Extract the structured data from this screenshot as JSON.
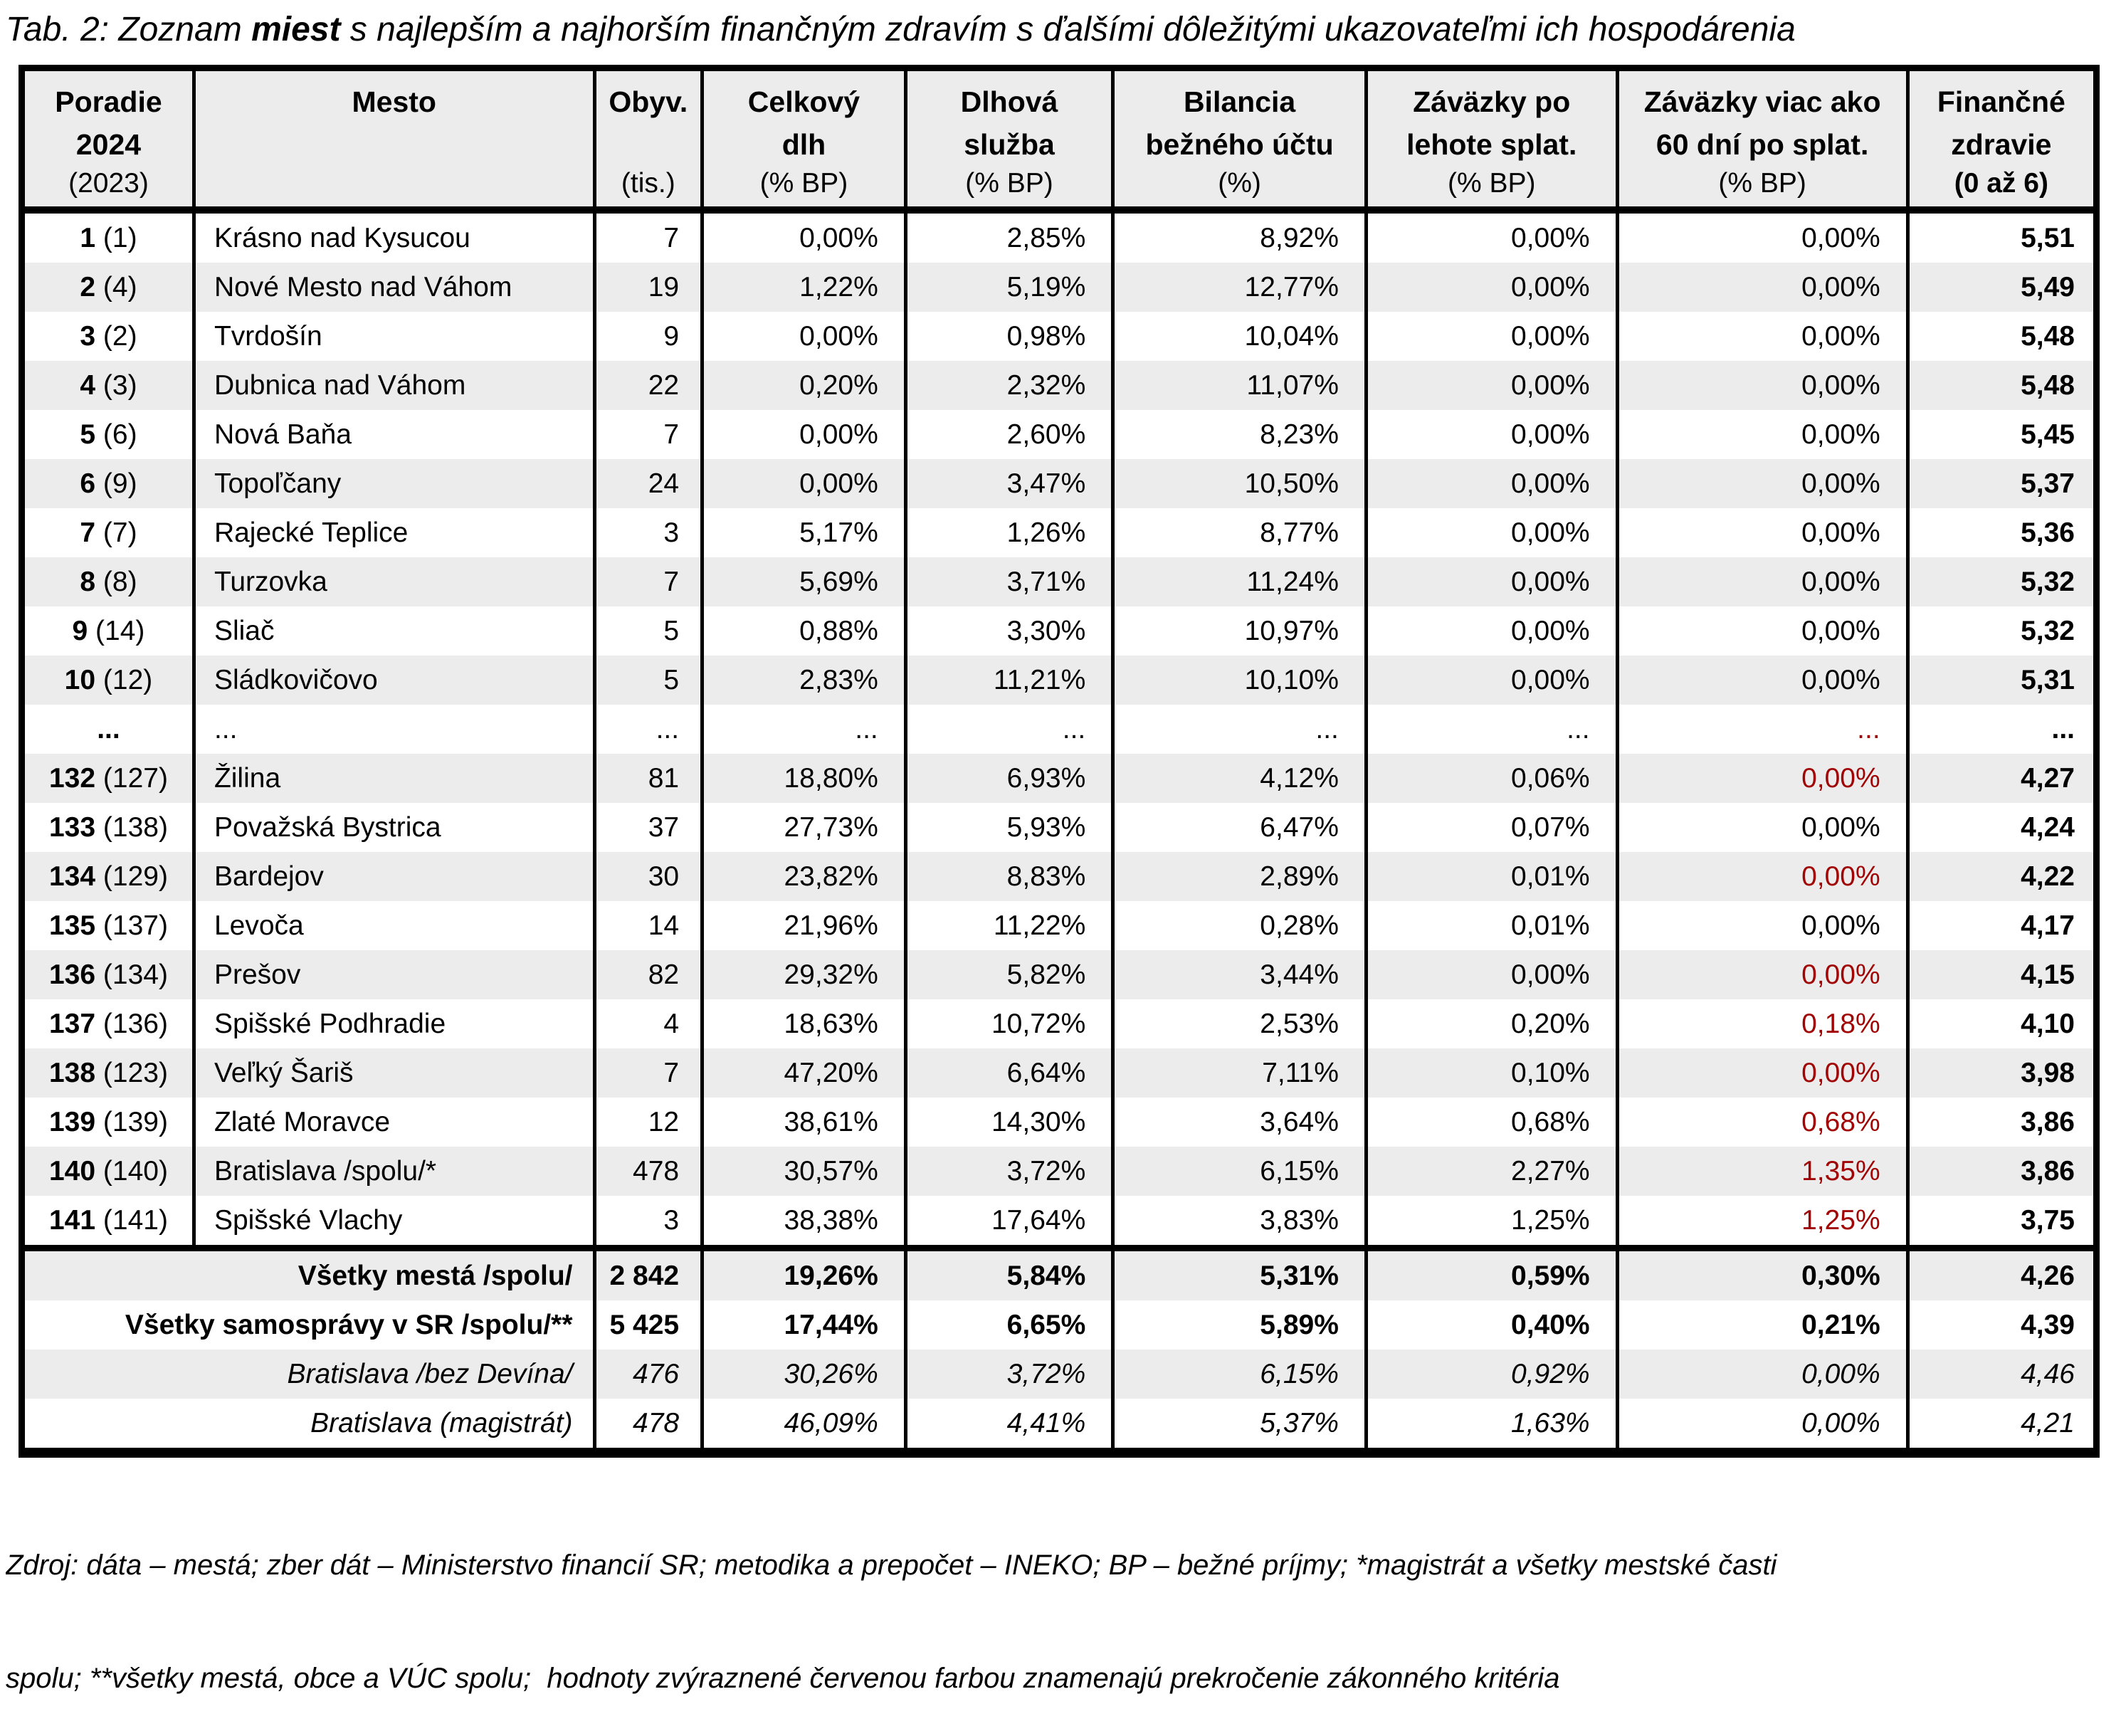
{
  "title": {
    "prefix": "Tab. 2: Zoznam ",
    "bold_word": "miest",
    "suffix": " s najlepším a najhorším finančným zdravím s ďalšími dôležitými ukazovateľmi ich hospodárenia"
  },
  "colors": {
    "highlight_red": "#A00404",
    "row_alt_gray": "#ECECEC",
    "border": "#000000"
  },
  "table": {
    "header": {
      "columns": [
        {
          "lines": [
            "Poradie",
            "2024"
          ],
          "unit": "(2023)",
          "unit_bold": false
        },
        {
          "lines": [
            "Mesto"
          ],
          "unit": "",
          "unit_bold": false
        },
        {
          "lines": [
            "Obyv."
          ],
          "unit": "(tis.)",
          "unit_bold": false
        },
        {
          "lines": [
            "Celkový",
            "dlh"
          ],
          "unit": "(% BP)",
          "unit_bold": false
        },
        {
          "lines": [
            "Dlhová",
            "služba"
          ],
          "unit": "(% BP)",
          "unit_bold": false
        },
        {
          "lines": [
            "Bilancia",
            "bežného účtu"
          ],
          "unit": "(%)",
          "unit_bold": false
        },
        {
          "lines": [
            "Záväzky po",
            "lehote splat."
          ],
          "unit": "(% BP)",
          "unit_bold": false
        },
        {
          "lines": [
            "Záväzky viac ako",
            "60 dní po splat."
          ],
          "unit": "(% BP)",
          "unit_bold": false
        },
        {
          "lines": [
            "Finančné",
            "zdravie"
          ],
          "unit": "(0 až 6)",
          "unit_bold": true
        }
      ]
    },
    "rows": [
      {
        "rank": "1",
        "prev": "(1)",
        "city": "Krásno nad Kysucou",
        "values": [
          "7",
          "0,00%",
          "2,85%",
          "8,92%",
          "0,00%",
          "0,00%",
          "5,51"
        ],
        "zav60_red": false
      },
      {
        "rank": "2",
        "prev": "(4)",
        "city": "Nové Mesto nad Váhom",
        "values": [
          "19",
          "1,22%",
          "5,19%",
          "12,77%",
          "0,00%",
          "0,00%",
          "5,49"
        ],
        "zav60_red": false
      },
      {
        "rank": "3",
        "prev": "(2)",
        "city": "Tvrdošín",
        "values": [
          "9",
          "0,00%",
          "0,98%",
          "10,04%",
          "0,00%",
          "0,00%",
          "5,48"
        ],
        "zav60_red": false
      },
      {
        "rank": "4",
        "prev": "(3)",
        "city": "Dubnica nad Váhom",
        "values": [
          "22",
          "0,20%",
          "2,32%",
          "11,07%",
          "0,00%",
          "0,00%",
          "5,48"
        ],
        "zav60_red": false
      },
      {
        "rank": "5",
        "prev": "(6)",
        "city": "Nová Baňa",
        "values": [
          "7",
          "0,00%",
          "2,60%",
          "8,23%",
          "0,00%",
          "0,00%",
          "5,45"
        ],
        "zav60_red": false
      },
      {
        "rank": "6",
        "prev": "(9)",
        "city": "Topoľčany",
        "values": [
          "24",
          "0,00%",
          "3,47%",
          "10,50%",
          "0,00%",
          "0,00%",
          "5,37"
        ],
        "zav60_red": false
      },
      {
        "rank": "7",
        "prev": "(7)",
        "city": "Rajecké Teplice",
        "values": [
          "3",
          "5,17%",
          "1,26%",
          "8,77%",
          "0,00%",
          "0,00%",
          "5,36"
        ],
        "zav60_red": false
      },
      {
        "rank": "8",
        "prev": "(8)",
        "city": "Turzovka",
        "values": [
          "7",
          "5,69%",
          "3,71%",
          "11,24%",
          "0,00%",
          "0,00%",
          "5,32"
        ],
        "zav60_red": false
      },
      {
        "rank": "9",
        "prev": "(14)",
        "city": "Sliač",
        "values": [
          "5",
          "0,88%",
          "3,30%",
          "10,97%",
          "0,00%",
          "0,00%",
          "5,32"
        ],
        "zav60_red": false
      },
      {
        "rank": "10",
        "prev": "(12)",
        "city": "Sládkovičovo",
        "values": [
          "5",
          "2,83%",
          "11,21%",
          "10,10%",
          "0,00%",
          "0,00%",
          "5,31"
        ],
        "zav60_red": false
      },
      {
        "rank": "...",
        "prev": "",
        "city": "...",
        "values": [
          "...",
          "...",
          "...",
          "...",
          "...",
          "...",
          "..."
        ],
        "zav60_red": true
      },
      {
        "rank": "132",
        "prev": "(127)",
        "city": "Žilina",
        "values": [
          "81",
          "18,80%",
          "6,93%",
          "4,12%",
          "0,06%",
          "0,00%",
          "4,27"
        ],
        "zav60_red": true
      },
      {
        "rank": "133",
        "prev": "(138)",
        "city": "Považská Bystrica",
        "values": [
          "37",
          "27,73%",
          "5,93%",
          "6,47%",
          "0,07%",
          "0,00%",
          "4,24"
        ],
        "zav60_red": false
      },
      {
        "rank": "134",
        "prev": "(129)",
        "city": "Bardejov",
        "values": [
          "30",
          "23,82%",
          "8,83%",
          "2,89%",
          "0,01%",
          "0,00%",
          "4,22"
        ],
        "zav60_red": true
      },
      {
        "rank": "135",
        "prev": "(137)",
        "city": "Levoča",
        "values": [
          "14",
          "21,96%",
          "11,22%",
          "0,28%",
          "0,01%",
          "0,00%",
          "4,17"
        ],
        "zav60_red": false
      },
      {
        "rank": "136",
        "prev": "(134)",
        "city": "Prešov",
        "values": [
          "82",
          "29,32%",
          "5,82%",
          "3,44%",
          "0,00%",
          "0,00%",
          "4,15"
        ],
        "zav60_red": true
      },
      {
        "rank": "137",
        "prev": "(136)",
        "city": "Spišské Podhradie",
        "values": [
          "4",
          "18,63%",
          "10,72%",
          "2,53%",
          "0,20%",
          "0,18%",
          "4,10"
        ],
        "zav60_red": true
      },
      {
        "rank": "138",
        "prev": "(123)",
        "city": "Veľký Šariš",
        "values": [
          "7",
          "47,20%",
          "6,64%",
          "7,11%",
          "0,10%",
          "0,00%",
          "3,98"
        ],
        "zav60_red": true
      },
      {
        "rank": "139",
        "prev": "(139)",
        "city": "Zlaté Moravce",
        "values": [
          "12",
          "38,61%",
          "14,30%",
          "3,64%",
          "0,68%",
          "0,68%",
          "3,86"
        ],
        "zav60_red": true
      },
      {
        "rank": "140",
        "prev": "(140)",
        "city": "Bratislava /spolu/*",
        "values": [
          "478",
          "30,57%",
          "3,72%",
          "6,15%",
          "2,27%",
          "1,35%",
          "3,86"
        ],
        "zav60_red": true
      },
      {
        "rank": "141",
        "prev": "(141)",
        "city": "Spišské Vlachy",
        "values": [
          "3",
          "38,38%",
          "17,64%",
          "3,83%",
          "1,25%",
          "1,25%",
          "3,75"
        ],
        "zav60_red": true
      }
    ],
    "summary_rows": [
      {
        "label": "Všetky mestá /spolu/",
        "values": [
          "2 842",
          "19,26%",
          "5,84%",
          "5,31%",
          "0,59%",
          "0,30%",
          "4,26"
        ],
        "style": "bold"
      },
      {
        "label": "Všetky samosprávy v SR /spolu/**",
        "values": [
          "5 425",
          "17,44%",
          "6,65%",
          "5,89%",
          "0,40%",
          "0,21%",
          "4,39"
        ],
        "style": "bold"
      },
      {
        "label": "Bratislava /bez Devína/",
        "values": [
          "476",
          "30,26%",
          "3,72%",
          "6,15%",
          "0,92%",
          "0,00%",
          "4,46"
        ],
        "style": "italic"
      },
      {
        "label": "Bratislava (magistrát)",
        "values": [
          "478",
          "46,09%",
          "4,41%",
          "5,37%",
          "1,63%",
          "0,00%",
          "4,21"
        ],
        "style": "italic"
      }
    ]
  },
  "footer": {
    "line1": "Zdroj: dáta – mestá; zber dát – Ministerstvo financií SR; metodika a prepočet – INEKO; BP – bežné príjmy; *magistrát a všetky mestské časti",
    "line2": "spolu; **všetky mestá, obce a VÚC spolu;  hodnoty zvýraznené červenou farbou znamenajú prekročenie zákonného kritéria"
  }
}
